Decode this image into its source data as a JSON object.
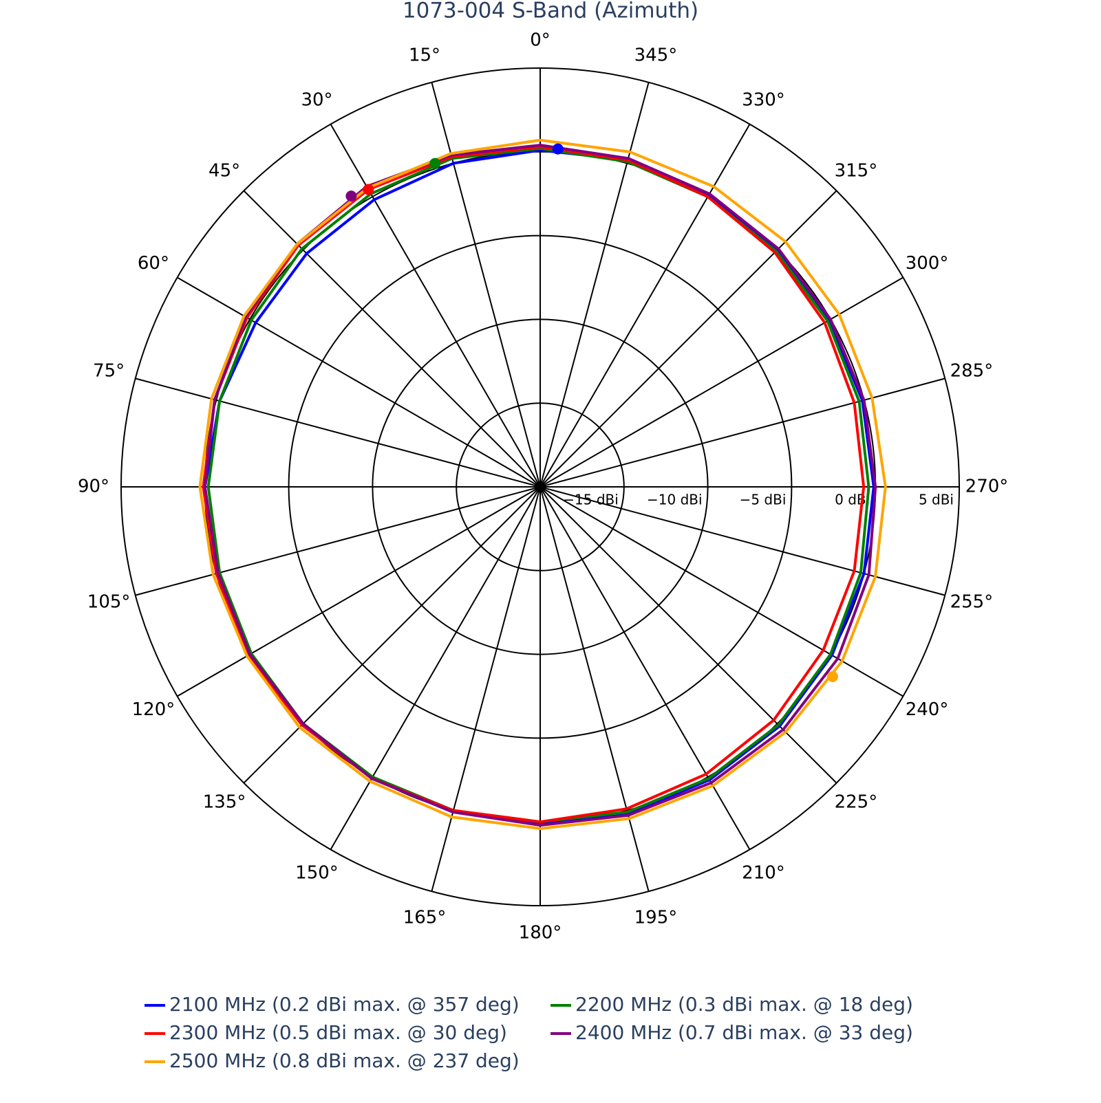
{
  "chart_data": {
    "type": "polar",
    "title": "1073-004 S-Band (Azimuth)",
    "direction": "counterclockwise",
    "zero_at": "top",
    "theta": [
      0,
      15,
      30,
      45,
      60,
      75,
      90,
      105,
      120,
      135,
      150,
      165,
      180,
      195,
      210,
      225,
      240,
      255,
      270,
      285,
      300,
      315,
      330,
      345
    ],
    "rlim": [
      -20,
      5
    ],
    "rticks": [
      {
        "value": -15,
        "label": "−15 dBi"
      },
      {
        "value": -10,
        "label": "−10 dBi"
      },
      {
        "value": -5,
        "label": "−5 dBi"
      },
      {
        "value": 0,
        "label": "0 dBi"
      },
      {
        "value": 5,
        "label": "5 dBi"
      }
    ],
    "thetaticks": [
      {
        "value": 0,
        "label": "0°"
      },
      {
        "value": 15,
        "label": "15°"
      },
      {
        "value": 30,
        "label": "30°"
      },
      {
        "value": 45,
        "label": "45°"
      },
      {
        "value": 60,
        "label": "60°"
      },
      {
        "value": 75,
        "label": "75°"
      },
      {
        "value": 90,
        "label": "90°"
      },
      {
        "value": 105,
        "label": "105°"
      },
      {
        "value": 120,
        "label": "120°"
      },
      {
        "value": 135,
        "label": "135°"
      },
      {
        "value": 150,
        "label": "150°"
      },
      {
        "value": 165,
        "label": "165°"
      },
      {
        "value": 180,
        "label": "180°"
      },
      {
        "value": 195,
        "label": "195°"
      },
      {
        "value": 210,
        "label": "210°"
      },
      {
        "value": 225,
        "label": "225°"
      },
      {
        "value": 240,
        "label": "240°"
      },
      {
        "value": 255,
        "label": "255°"
      },
      {
        "value": 270,
        "label": "270°"
      },
      {
        "value": 285,
        "label": "285°"
      },
      {
        "value": 300,
        "label": "300°"
      },
      {
        "value": 315,
        "label": "315°"
      },
      {
        "value": 330,
        "label": "330°"
      },
      {
        "value": 345,
        "label": "345°"
      }
    ],
    "series": [
      {
        "name": "2100 MHz (0.2 dBi max. @ 357 deg)",
        "color": "#0000ff",
        "values": [
          0.1,
          0.0,
          -0.2,
          -0.3,
          -0.4,
          -0.2,
          0.0,
          0.0,
          0.0,
          0.0,
          0.1,
          0.1,
          0.1,
          0.2,
          0.2,
          0.2,
          0.1,
          0.0,
          -0.1,
          -0.1,
          -0.1,
          0.0,
          0.1,
          0.2
        ],
        "max_marker": {
          "theta": 357,
          "r": 0.2
        }
      },
      {
        "name": "2200 MHz (0.3 dBi max. @ 18 deg)",
        "color": "#008000",
        "values": [
          0.2,
          0.3,
          0.2,
          0.1,
          -0.1,
          -0.2,
          -0.2,
          -0.2,
          -0.1,
          0.0,
          0.0,
          0.0,
          0.0,
          0.1,
          0.1,
          0.1,
          0.0,
          -0.2,
          -0.4,
          -0.3,
          -0.2,
          -0.1,
          0.0,
          0.1
        ],
        "max_marker": {
          "theta": 18,
          "r": 0.3
        }
      },
      {
        "name": "2300 MHz (0.5 dBi max. @ 30 deg)",
        "color": "#ff0000",
        "values": [
          0.3,
          0.4,
          0.5,
          0.4,
          0.2,
          0.1,
          0.1,
          0.0,
          0.1,
          0.1,
          0.1,
          0.0,
          0.0,
          -0.1,
          -0.2,
          -0.3,
          -0.5,
          -0.6,
          -0.7,
          -0.6,
          -0.4,
          -0.2,
          0.0,
          0.2
        ],
        "max_marker": {
          "theta": 30,
          "r": 0.5
        }
      },
      {
        "name": "2400 MHz (0.7 dBi max. @ 33 deg)",
        "color": "#800080",
        "values": [
          0.4,
          0.5,
          0.7,
          0.5,
          0.3,
          0.1,
          0.0,
          -0.1,
          0.0,
          0.0,
          0.1,
          0.1,
          0.2,
          0.3,
          0.4,
          0.5,
          0.5,
          0.3,
          0.0,
          0.0,
          0.0,
          0.1,
          0.2,
          0.3
        ],
        "max_marker": {
          "theta": 33,
          "r": 0.7
        }
      },
      {
        "name": "2500 MHz (0.8 dBi max. @ 237 deg)",
        "color": "#ffa500",
        "values": [
          0.7,
          0.6,
          0.6,
          0.5,
          0.4,
          0.3,
          0.3,
          0.2,
          0.2,
          0.3,
          0.3,
          0.4,
          0.4,
          0.5,
          0.6,
          0.7,
          0.8,
          0.7,
          0.6,
          0.5,
          0.6,
          0.7,
          0.7,
          0.7
        ],
        "max_marker": {
          "theta": 237,
          "r": 0.8
        }
      }
    ]
  }
}
